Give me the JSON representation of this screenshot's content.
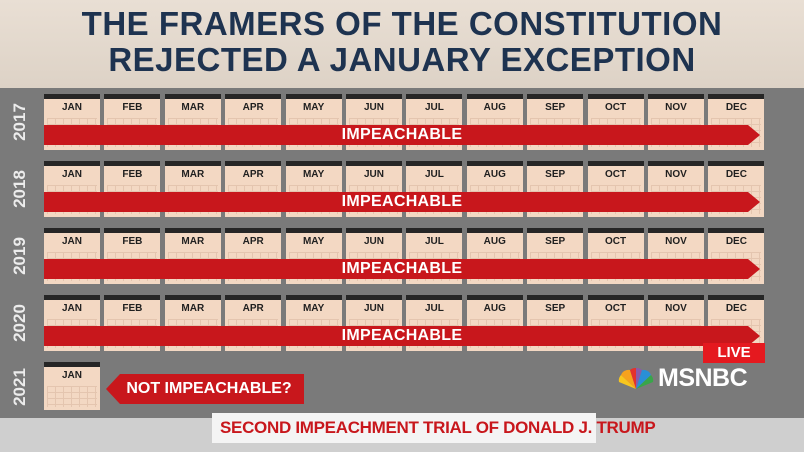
{
  "title": {
    "line1": "THE FRAMERS OF THE CONSTITUTION",
    "line2": "REJECTED A JANUARY EXCEPTION"
  },
  "months": [
    "JAN",
    "FEB",
    "MAR",
    "APR",
    "MAY",
    "JUN",
    "JUL",
    "AUG",
    "SEP",
    "OCT",
    "NOV",
    "DEC"
  ],
  "rows": [
    {
      "year": "2017",
      "label": "IMPEACHABLE"
    },
    {
      "year": "2018",
      "label": "IMPEACHABLE"
    },
    {
      "year": "2019",
      "label": "IMPEACHABLE"
    },
    {
      "year": "2020",
      "label": "IMPEACHABLE"
    }
  ],
  "last_row": {
    "year": "2021",
    "month": "JAN",
    "label": "NOT IMPEACHABLE?"
  },
  "lower_third": {
    "text": "SECOND IMPEACHMENT TRIAL OF DONALD J. TRUMP"
  },
  "network": {
    "live": "LIVE",
    "name": "MSNBC"
  },
  "colors": {
    "title": "#1e3350",
    "accent_red": "#c8171c",
    "calendar": "#f3d8c3",
    "background": "#7a7a7a"
  }
}
